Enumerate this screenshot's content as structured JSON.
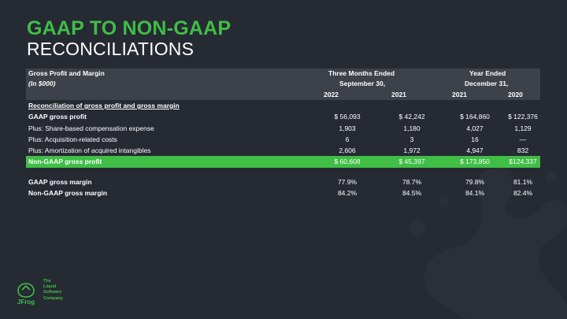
{
  "title": {
    "line1": "GAAP TO NON-GAAP",
    "line2": "RECONCILIATIONS"
  },
  "table": {
    "header": {
      "label": "Gross Profit and Margin",
      "units": "(In $000)",
      "group1": "Three Months Ended",
      "group1_sub": "September 30,",
      "group2": "Year Ended",
      "group2_sub": "December 31,",
      "years": [
        "2022",
        "2021",
        "2021",
        "2020"
      ]
    },
    "section_title": "Reconciliation of gross profit and gross margin",
    "rows": [
      {
        "label": "GAAP gross profit",
        "values": [
          "$ 56,093",
          "$ 42,242",
          "$ 164,860",
          "$ 122,376"
        ]
      },
      {
        "label": "Plus: Share-based compensation expense",
        "values": [
          "1,903",
          "1,180",
          "4,027",
          "1,129"
        ]
      },
      {
        "label": "Plus: Acquisition-related costs",
        "values": [
          "6",
          "3",
          "16",
          "—"
        ]
      },
      {
        "label": "Plus: Amortization of acquired intangibles",
        "values": [
          "2,606",
          "1,972",
          "4,947",
          "832"
        ]
      },
      {
        "label": "Non-GAAP gross profit",
        "values": [
          "$ 60,608",
          "$ 45,397",
          "$ 173,850",
          "$124,337"
        ]
      }
    ],
    "margins": [
      {
        "label": "GAAP gross margin",
        "values": [
          "77.9%",
          "78.7%",
          "79.8%",
          "81.1%"
        ]
      },
      {
        "label": "Non-GAAP gross margin",
        "values": [
          "84.2%",
          "84.5%",
          "84.1%",
          "82.4%"
        ]
      }
    ]
  },
  "footer": {
    "logo_text": "JFrog",
    "tagline": [
      "The",
      "Liquid",
      "Software",
      "Company"
    ]
  },
  "colors": {
    "background": "#262a33",
    "accent": "#40be46",
    "header_bg": "#3d4149"
  }
}
